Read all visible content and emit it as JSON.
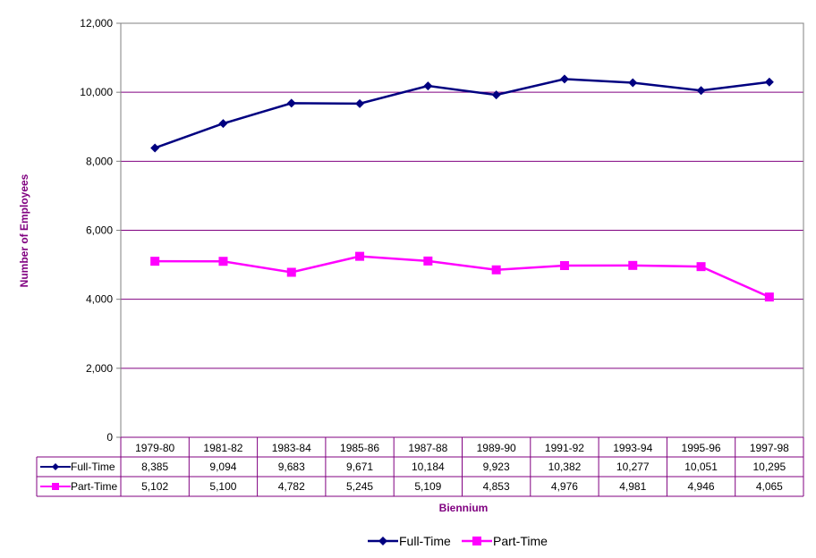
{
  "chart_data": {
    "type": "line",
    "title": "",
    "xlabel": "Biennium",
    "ylabel": "Number of Employees",
    "ylim": [
      0,
      12000
    ],
    "yticks": [
      0,
      2000,
      4000,
      6000,
      8000,
      10000,
      12000
    ],
    "ytick_labels": [
      "0",
      "2,000",
      "4,000",
      "6,000",
      "8,000",
      "10,000",
      "12,000"
    ],
    "grid": true,
    "legend_position": "bottom",
    "categories": [
      "1979-80",
      "1981-82",
      "1983-84",
      "1985-86",
      "1987-88",
      "1989-90",
      "1991-92",
      "1993-94",
      "1995-96",
      "1997-98"
    ],
    "series": [
      {
        "name": "Full-Time",
        "color": "#000080",
        "marker": "diamond",
        "values": [
          8385,
          9094,
          9683,
          9671,
          10184,
          9923,
          10382,
          10277,
          10051,
          10295
        ],
        "labels": [
          "8,385",
          "9,094",
          "9,683",
          "9,671",
          "10,184",
          "9,923",
          "10,382",
          "10,277",
          "10,051",
          "10,295"
        ]
      },
      {
        "name": "Part-Time",
        "color": "#ff00ff",
        "marker": "square",
        "values": [
          5102,
          5100,
          4782,
          5245,
          5109,
          4853,
          4976,
          4981,
          4946,
          4065
        ],
        "labels": [
          "5,102",
          "5,100",
          "4,782",
          "5,245",
          "5,109",
          "4,853",
          "4,976",
          "4,981",
          "4,946",
          "4,065"
        ]
      }
    ]
  },
  "colors": {
    "axis_title": "#800080",
    "gridline": "#800080",
    "axis": "#808080",
    "table_border": "#800080",
    "text": "#000000"
  }
}
